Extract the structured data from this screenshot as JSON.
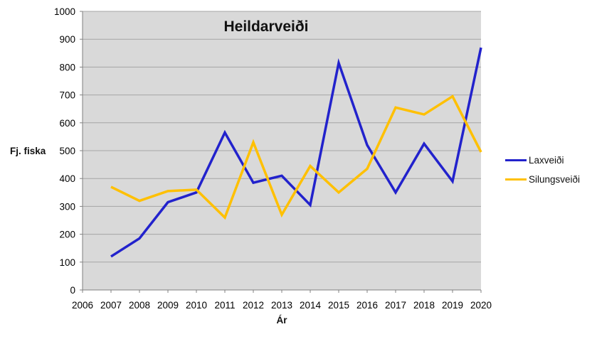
{
  "title": "Heildarveiði",
  "colors": {
    "laxveidi_line": "#2222CC",
    "silungsveidi_line": "#FFC000",
    "plot_background": "#D9D9D9",
    "gridline": "#A6A6A6",
    "axis_line": "#808080",
    "text": "#000000"
  },
  "legend": {
    "items": [
      {
        "label": "Laxveiði",
        "color": "#2222CC"
      },
      {
        "label": "Silungsveiði",
        "color": "#FFC000"
      }
    ]
  },
  "chart_data": {
    "type": "line",
    "title": "Heildarveiði",
    "xlabel": "Ár",
    "ylabel": "Fj. fiska",
    "xlim": [
      2006,
      2020
    ],
    "ylim": [
      0,
      1000
    ],
    "grid": true,
    "legend_position": "right",
    "plot_bg": "#D9D9D9",
    "gridline_color": "#A6A6A6",
    "axis_color": "#808080",
    "x_ticks": [
      "2006",
      "2007",
      "2008",
      "2009",
      "2010",
      "2011",
      "2012",
      "2013",
      "2014",
      "2015",
      "2016",
      "2017",
      "2018",
      "2019",
      "2020"
    ],
    "y_ticks": [
      0,
      100,
      200,
      300,
      400,
      500,
      600,
      700,
      800,
      900,
      1000
    ],
    "x": [
      2007,
      2008,
      2009,
      2010,
      2011,
      2012,
      2013,
      2014,
      2015,
      2016,
      2017,
      2018,
      2019,
      2020
    ],
    "series": [
      {
        "name": "Laxveiði",
        "color": "#2222CC",
        "values": [
          120,
          185,
          315,
          350,
          565,
          385,
          410,
          305,
          815,
          520,
          350,
          525,
          390,
          870
        ]
      },
      {
        "name": "Silungsveiði",
        "color": "#FFC000",
        "values": [
          370,
          320,
          355,
          360,
          260,
          530,
          270,
          445,
          350,
          435,
          655,
          630,
          695,
          495
        ]
      }
    ]
  }
}
